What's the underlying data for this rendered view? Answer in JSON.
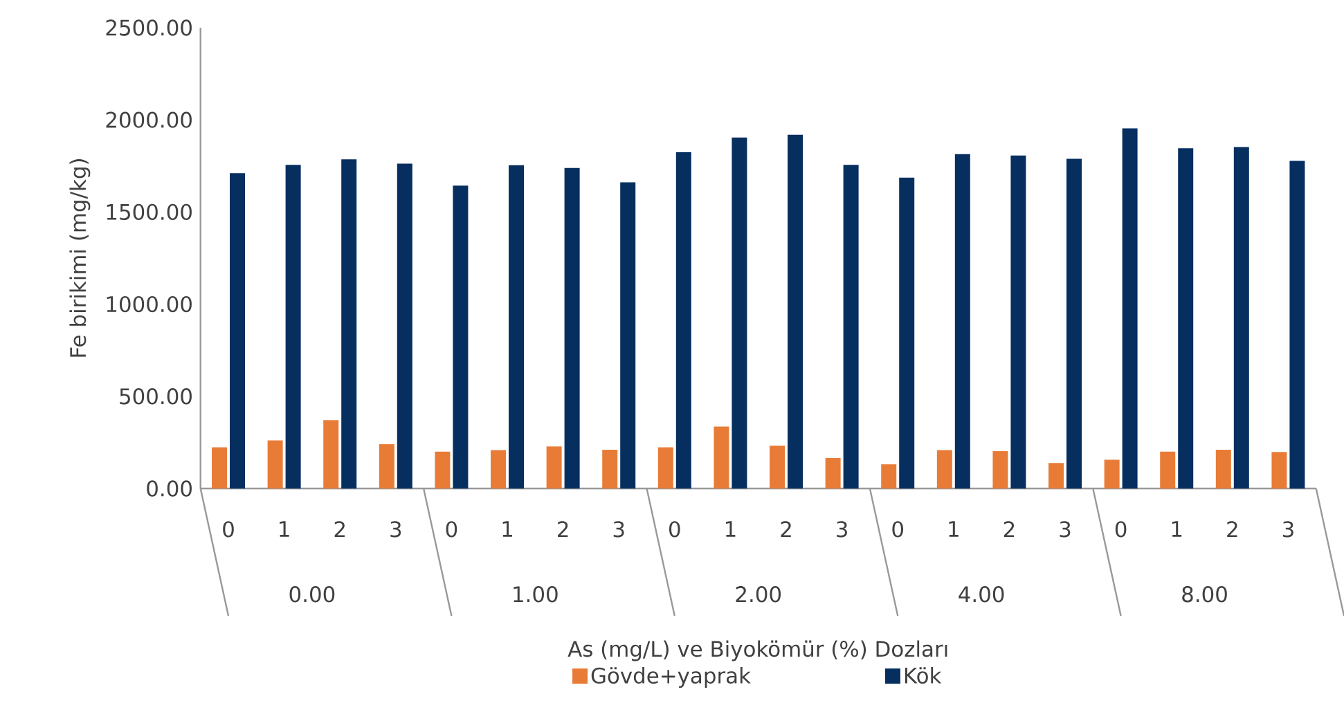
{
  "chart_data": {
    "type": "bar",
    "xlabel": "As (mg/L) ve Biyokömür (%) Dozları",
    "ylabel": "Fe birikimi (mg/kg)",
    "categories": [
      "0",
      "1",
      "2",
      "3",
      "0",
      "1",
      "2",
      "3",
      "0",
      "1",
      "2",
      "3",
      "0",
      "1",
      "2",
      "3",
      "0",
      "1",
      "2",
      "3"
    ],
    "annotations": [
      "0.00",
      "1.00",
      "2.00",
      "4.00",
      "8.00"
    ],
    "series": [
      {
        "name": "Gövde+yaprak",
        "color": "#e87c37",
        "values": [
          223,
          261,
          371,
          240,
          200,
          208,
          228,
          210,
          223,
          336,
          233,
          165,
          131,
          208,
          203,
          138,
          156,
          200,
          210,
          198
        ]
      },
      {
        "name": "Kök",
        "color": "#062f60",
        "values": [
          1711,
          1756,
          1786,
          1762,
          1643,
          1754,
          1739,
          1661,
          1824,
          1904,
          1919,
          1756,
          1686,
          1814,
          1806,
          1789,
          1954,
          1846,
          1852,
          1777
        ]
      }
    ],
    "ylim": [
      0,
      2500
    ],
    "yticks": [
      {
        "value": 0,
        "label": "0.00"
      },
      {
        "value": 500,
        "label": "500.00"
      },
      {
        "value": 1000,
        "label": "1000.00"
      },
      {
        "value": 1500,
        "label": "1500.00"
      },
      {
        "value": 2000,
        "label": "2000.00"
      },
      {
        "value": 2500,
        "label": "2500.00"
      }
    ],
    "legend": "bottom"
  }
}
